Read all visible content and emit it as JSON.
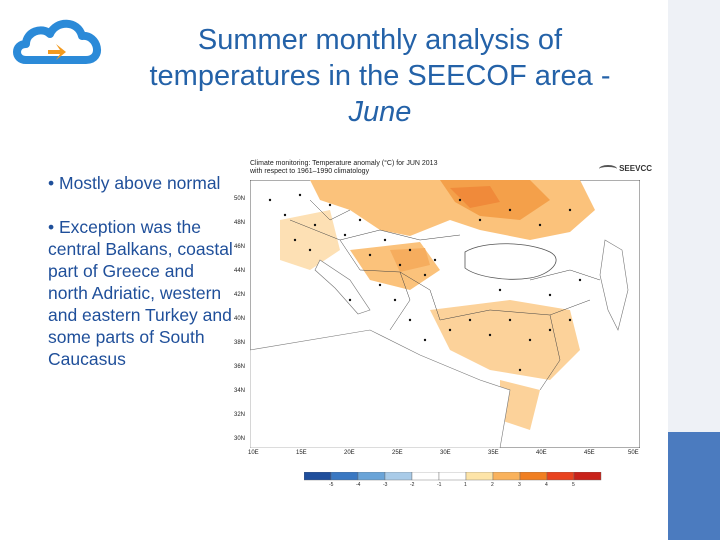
{
  "title": {
    "line1": "Summer monthly analysis of",
    "line2": "temperatures in the SEECOF area -",
    "line3": "June"
  },
  "bullets": [
    "• Mostly above normal",
    "• Exception was the central Balkans, coastal part of Greece and north Adriatic, western and eastern Turkey and some parts of South Caucasus"
  ],
  "map": {
    "header_line1": "Climate monitoring: Temperature anomaly (°C) for JUN 2013",
    "header_line2": "with respect to 1961–1990 climatology",
    "logo_text": "SEEVCC",
    "lat_labels": [
      "50N",
      "48N",
      "46N",
      "44N",
      "42N",
      "40N",
      "38N",
      "36N",
      "34N",
      "32N",
      "30N"
    ],
    "lon_labels": [
      "10E",
      "15E",
      "20E",
      "25E",
      "30E",
      "35E",
      "40E",
      "45E",
      "50E"
    ],
    "colorbar_labels": [
      "-5",
      "-4",
      "-3",
      "-2",
      "-1",
      "1",
      "2",
      "3",
      "4",
      "5"
    ],
    "colorbar_colors": [
      "#1f4e9c",
      "#3a78c2",
      "#6aa4d8",
      "#a9cbe8",
      "#ffffff",
      "#ffffff",
      "#fde4a8",
      "#f9b25c",
      "#f07f22",
      "#e8431f",
      "#c8221a"
    ]
  },
  "colors": {
    "title": "#2462a8",
    "bullet_text": "#1f4f9a",
    "logo_cloud": "#2b8ad8",
    "logo_arrow": "#f39a1e"
  }
}
